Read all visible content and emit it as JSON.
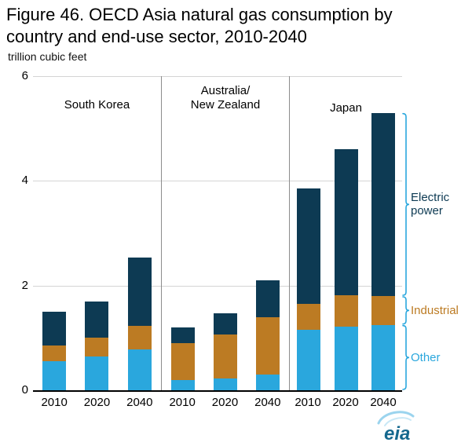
{
  "title_lines": [
    "Figure 46. OECD Asia natural gas consumption by",
    "country and end-use sector, 2010-2040"
  ],
  "subtitle": "trillion cubic feet",
  "logo": {
    "text": "eia"
  },
  "chart_data": {
    "type": "bar",
    "stacked": true,
    "title": "Figure 46. OECD Asia natural gas consumption by country and end-use sector, 2010-2040",
    "units": "trillion cubic feet",
    "ylim": [
      0,
      6
    ],
    "yticks": [
      0,
      2,
      4,
      6
    ],
    "grid": true,
    "legend_position": "right",
    "legend": [
      {
        "label": "Electric power",
        "color": "#0d3a53"
      },
      {
        "label": "Industrial",
        "color": "#bc7b23"
      },
      {
        "label": "Other",
        "color": "#2aa7dd"
      }
    ],
    "panels": [
      {
        "id": "south-korea",
        "label": "South Korea",
        "label_lines": [
          "South Korea"
        ],
        "categories": [
          "2010",
          "2020",
          "2040"
        ],
        "series": [
          {
            "name": "Other",
            "values": [
              0.55,
              0.65,
              0.78
            ]
          },
          {
            "name": "Industrial",
            "values": [
              0.3,
              0.35,
              0.45
            ]
          },
          {
            "name": "Electric power",
            "values": [
              0.65,
              0.7,
              1.3
            ]
          }
        ]
      },
      {
        "id": "australia-new-zealand",
        "label": "Australia/New Zealand",
        "label_lines": [
          "Australia/",
          "New Zealand"
        ],
        "categories": [
          "2010",
          "2020",
          "2040"
        ],
        "series": [
          {
            "name": "Other",
            "values": [
              0.2,
              0.22,
              0.3
            ]
          },
          {
            "name": "Industrial",
            "values": [
              0.7,
              0.85,
              1.1
            ]
          },
          {
            "name": "Electric power",
            "values": [
              0.3,
              0.4,
              0.7
            ]
          }
        ]
      },
      {
        "id": "japan",
        "label": "Japan",
        "label_lines": [
          "Japan"
        ],
        "categories": [
          "2010",
          "2020",
          "2040"
        ],
        "series": [
          {
            "name": "Other",
            "values": [
              1.15,
              1.22,
              1.25
            ]
          },
          {
            "name": "Industrial",
            "values": [
              0.5,
              0.6,
              0.55
            ]
          },
          {
            "name": "Electric power",
            "values": [
              2.2,
              2.78,
              3.5
            ]
          }
        ]
      }
    ]
  }
}
